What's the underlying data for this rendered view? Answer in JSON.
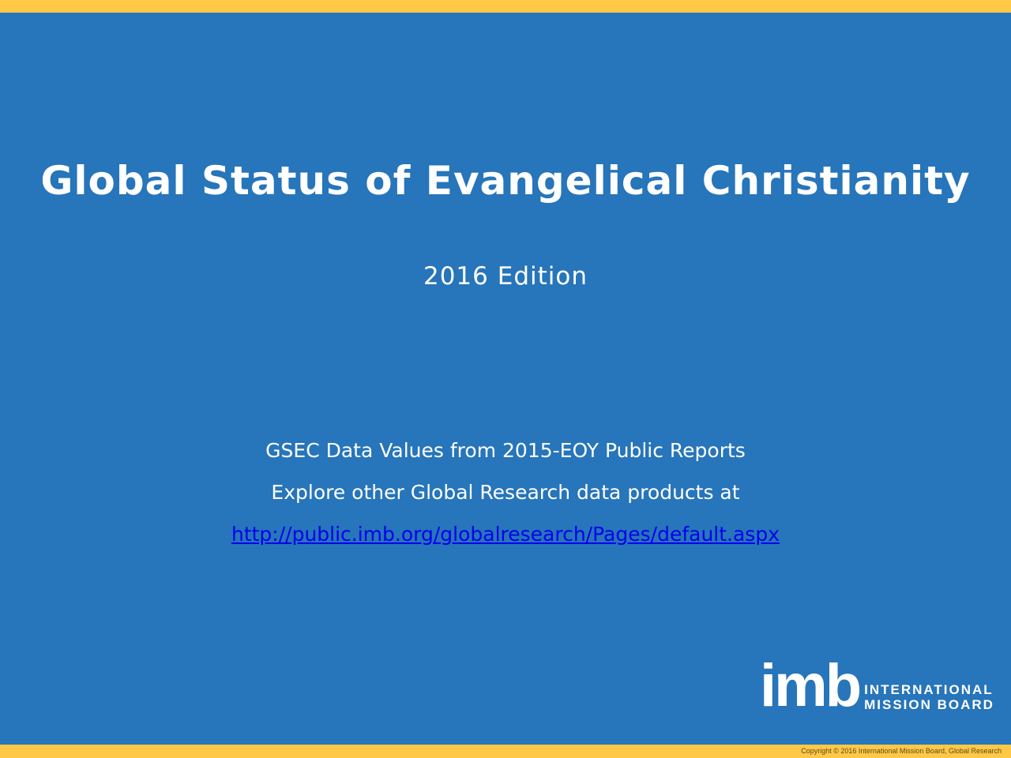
{
  "title": "Global Status of Evangelical Christianity",
  "subtitle": "2016 Edition",
  "lines": {
    "data_source": "GSEC Data Values from 2015-EOY Public Reports",
    "explore": "Explore other Global Research data products at",
    "link": "http://public.imb.org/globalresearch/Pages/default.aspx"
  },
  "logo": {
    "mark": "imb",
    "line1": "INTERNATIONAL",
    "line2": "MISSION BOARD"
  },
  "footer": {
    "copyright": "Copyright © 2016 International Mission Board, Global Research"
  },
  "colors": {
    "background": "#2775ba",
    "accent_bar": "#ffc846",
    "link": "#0000ee"
  }
}
